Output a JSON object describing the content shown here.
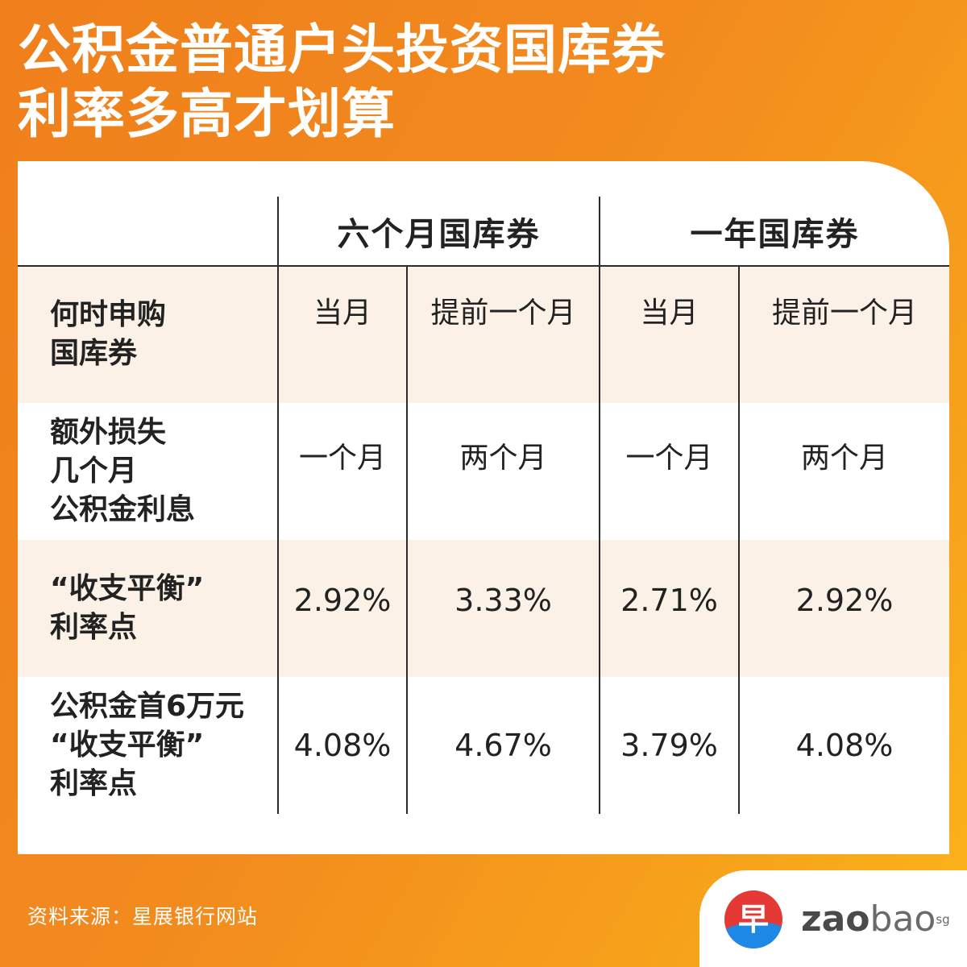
{
  "title": {
    "line1": "公积金普通户头投资国库券",
    "line2": "利率多高才划算"
  },
  "table": {
    "group_headers": [
      "六个月国库券",
      "一年国库券"
    ],
    "sub_headers": [
      "当月",
      "提前一个月",
      "当月",
      "提前一个月"
    ],
    "rows": [
      {
        "label_lines": [
          "何时申购",
          "国库券"
        ],
        "values": [
          "当月",
          "提前一个月",
          "当月",
          "提前一个月"
        ]
      },
      {
        "label_lines": [
          "额外损失",
          "几个月",
          "公积金利息"
        ],
        "values": [
          "一个月",
          "两个月",
          "一个月",
          "两个月"
        ]
      },
      {
        "label_lines": [
          "“收支平衡”",
          "利率点"
        ],
        "values": [
          "2.92%",
          "3.33%",
          "2.71%",
          "2.92%"
        ]
      },
      {
        "label_lines": [
          "公积金首6万元",
          "“收支平衡”",
          "利率点"
        ],
        "values": [
          "4.08%",
          "4.67%",
          "3.79%",
          "4.08%"
        ]
      }
    ]
  },
  "source": "资料来源：星展银行网站",
  "logo": {
    "mark": "早",
    "text_zao": "zao",
    "text_bao": "bao",
    "text_sg": "sg"
  },
  "colors": {
    "background_start": "#f07f1c",
    "background_end": "#fbb51a",
    "band": "#fbf1e6",
    "logo_red": "#e53935",
    "logo_blue": "#1e88e5"
  }
}
